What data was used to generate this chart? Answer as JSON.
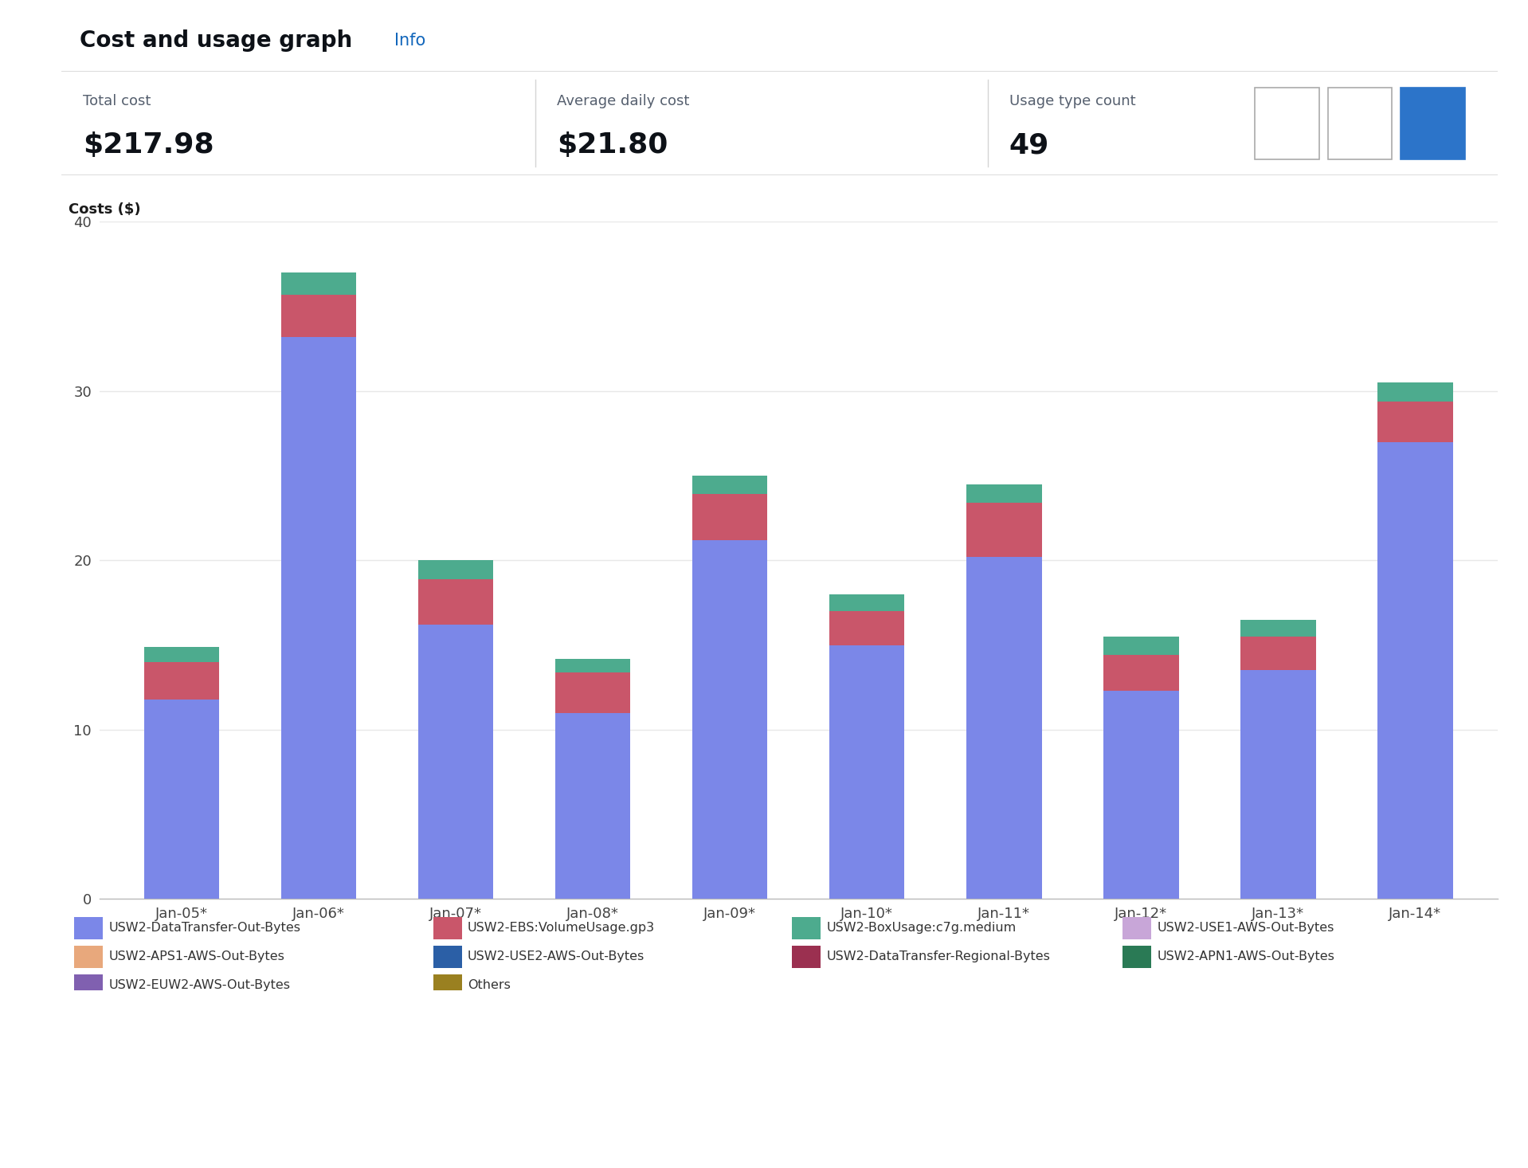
{
  "title": "Cost and usage graph",
  "title_info": "Info",
  "total_cost": "$217.98",
  "avg_daily_cost": "$21.80",
  "usage_type_count": "49",
  "total_cost_label": "Total cost",
  "avg_daily_label": "Average daily cost",
  "usage_type_label": "Usage type count",
  "ylabel": "Costs ($)",
  "ylim": [
    0,
    40
  ],
  "yticks": [
    0,
    10,
    20,
    30,
    40
  ],
  "categories": [
    "Jan-05*",
    "Jan-06*",
    "Jan-07*",
    "Jan-08*",
    "Jan-09*",
    "Jan-10*",
    "Jan-11*",
    "Jan-12*",
    "Jan-13*",
    "Jan-14*"
  ],
  "series": {
    "USW2-DataTransfer-Out-Bytes": {
      "values": [
        11.8,
        33.2,
        16.2,
        11.0,
        21.2,
        15.0,
        20.2,
        12.3,
        13.5,
        27.0
      ],
      "color": "#7B87E8"
    },
    "USW2-EBS:VolumeUsage.gp3": {
      "values": [
        2.2,
        2.5,
        2.7,
        2.4,
        2.7,
        2.0,
        3.2,
        2.1,
        2.0,
        2.4
      ],
      "color": "#C9566A"
    },
    "USW2-BoxUsage:c7g.medium": {
      "values": [
        0.9,
        1.3,
        1.1,
        0.8,
        1.1,
        1.0,
        1.1,
        1.1,
        1.0,
        1.1
      ],
      "color": "#4DAB8E"
    },
    "USW2-USE1-AWS-Out-Bytes": {
      "values": [
        0.0,
        0.0,
        0.0,
        0.0,
        0.0,
        0.0,
        0.0,
        0.0,
        0.0,
        0.0
      ],
      "color": "#C8A6D8"
    },
    "USW2-APS1-AWS-Out-Bytes": {
      "values": [
        0.0,
        0.0,
        0.0,
        0.0,
        0.0,
        0.0,
        0.0,
        0.0,
        0.0,
        0.0
      ],
      "color": "#E8A87C"
    },
    "USW2-USE2-AWS-Out-Bytes": {
      "values": [
        0.0,
        0.0,
        0.0,
        0.0,
        0.0,
        0.0,
        0.0,
        0.0,
        0.0,
        0.0
      ],
      "color": "#2B5FA6"
    },
    "USW2-DataTransfer-Regional-Bytes": {
      "values": [
        0.0,
        0.0,
        0.0,
        0.0,
        0.0,
        0.0,
        0.0,
        0.0,
        0.0,
        0.0
      ],
      "color": "#9B3050"
    },
    "USW2-APN1-AWS-Out-Bytes": {
      "values": [
        0.0,
        0.0,
        0.0,
        0.0,
        0.0,
        0.0,
        0.0,
        0.0,
        0.0,
        0.0
      ],
      "color": "#2A7A55"
    },
    "USW2-EUW2-AWS-Out-Bytes": {
      "values": [
        0.0,
        0.0,
        0.0,
        0.0,
        0.0,
        0.0,
        0.0,
        0.0,
        0.0,
        0.0
      ],
      "color": "#8060B0"
    },
    "Others": {
      "values": [
        0.0,
        0.0,
        0.0,
        0.0,
        0.0,
        0.0,
        0.0,
        0.0,
        0.0,
        0.0
      ],
      "color": "#9A8020"
    }
  },
  "background_color": "#FFFFFF",
  "grid_color": "#E8E8E8",
  "bar_width": 0.55,
  "legend_order": [
    "USW2-DataTransfer-Out-Bytes",
    "USW2-EBS:VolumeUsage.gp3",
    "USW2-BoxUsage:c7g.medium",
    "USW2-USE1-AWS-Out-Bytes",
    "USW2-APS1-AWS-Out-Bytes",
    "USW2-USE2-AWS-Out-Bytes",
    "USW2-DataTransfer-Regional-Bytes",
    "USW2-APN1-AWS-Out-Bytes",
    "USW2-EUW2-AWS-Out-Bytes",
    "Others"
  ],
  "header_bg": "#F2F3F3",
  "stats_bg": "#FFFFFF",
  "separator_color": "#D5D5D5",
  "title_fontsize": 20,
  "info_fontsize": 15,
  "label_fontsize": 13,
  "value_fontsize": 26,
  "tick_fontsize": 13,
  "ylabel_fontsize": 13,
  "legend_fontsize": 11.5
}
